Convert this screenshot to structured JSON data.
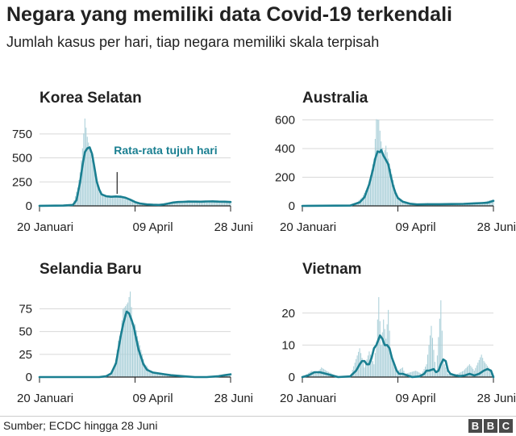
{
  "title": "Negara yang memiliki data Covid-19 terkendali",
  "subtitle": "Jumlah kasus per hari, tiap negara memiliki skala terpisah",
  "source": "Sumber; ECDC hingga 28 Juni",
  "logo": [
    "B",
    "B",
    "C"
  ],
  "colors": {
    "line": "#1a7f91",
    "bar": "#a9cfd8",
    "grid": "#d9d9d9",
    "axis": "#222222"
  },
  "chart_data": [
    {
      "type": "bar",
      "title": "Korea Selatan",
      "x_ticks": [
        "20 Januari",
        "09 April",
        "28 Juni"
      ],
      "x_tick_days": [
        0,
        80,
        160
      ],
      "y_ticks": [
        0,
        250,
        500,
        750
      ],
      "ylim": [
        0,
        900
      ],
      "annotation": {
        "text": "Rata-rata tujuh hari",
        "at_day": 65,
        "at_value": 100
      },
      "daily_points": [
        [
          0,
          1
        ],
        [
          10,
          3
        ],
        [
          20,
          3
        ],
        [
          28,
          15
        ],
        [
          30,
          100
        ],
        [
          32,
          190
        ],
        [
          34,
          350
        ],
        [
          36,
          600
        ],
        [
          38,
          910
        ],
        [
          40,
          720
        ],
        [
          42,
          600
        ],
        [
          44,
          480
        ],
        [
          46,
          370
        ],
        [
          48,
          250
        ],
        [
          50,
          150
        ],
        [
          52,
          115
        ],
        [
          54,
          100
        ],
        [
          56,
          95
        ],
        [
          60,
          90
        ],
        [
          64,
          100
        ],
        [
          68,
          110
        ],
        [
          72,
          90
        ],
        [
          76,
          60
        ],
        [
          80,
          40
        ],
        [
          84,
          30
        ],
        [
          88,
          20
        ],
        [
          95,
          15
        ],
        [
          100,
          10
        ],
        [
          108,
          20
        ],
        [
          112,
          45
        ],
        [
          116,
          40
        ],
        [
          120,
          50
        ],
        [
          125,
          60
        ],
        [
          130,
          40
        ],
        [
          135,
          50
        ],
        [
          140,
          45
        ],
        [
          145,
          60
        ],
        [
          150,
          40
        ],
        [
          155,
          55
        ],
        [
          160,
          45
        ]
      ],
      "avg_points": [
        [
          0,
          1
        ],
        [
          20,
          3
        ],
        [
          28,
          10
        ],
        [
          31,
          60
        ],
        [
          34,
          250
        ],
        [
          36,
          420
        ],
        [
          38,
          560
        ],
        [
          40,
          600
        ],
        [
          42,
          610
        ],
        [
          44,
          540
        ],
        [
          46,
          400
        ],
        [
          48,
          250
        ],
        [
          50,
          170
        ],
        [
          52,
          120
        ],
        [
          56,
          100
        ],
        [
          60,
          95
        ],
        [
          64,
          98
        ],
        [
          68,
          95
        ],
        [
          72,
          85
        ],
        [
          76,
          65
        ],
        [
          80,
          40
        ],
        [
          84,
          25
        ],
        [
          90,
          15
        ],
        [
          95,
          12
        ],
        [
          100,
          10
        ],
        [
          104,
          15
        ],
        [
          108,
          25
        ],
        [
          112,
          35
        ],
        [
          116,
          40
        ],
        [
          120,
          42
        ],
        [
          125,
          45
        ],
        [
          130,
          45
        ],
        [
          135,
          44
        ],
        [
          140,
          46
        ],
        [
          145,
          47
        ],
        [
          150,
          45
        ],
        [
          155,
          44
        ],
        [
          160,
          40
        ]
      ]
    },
    {
      "type": "bar",
      "title": "Australia",
      "x_ticks": [
        "20 Januari",
        "09 April",
        "28 Juni"
      ],
      "x_tick_days": [
        0,
        80,
        160
      ],
      "y_ticks": [
        0,
        200,
        400,
        600
      ],
      "ylim": [
        0,
        620
      ],
      "daily_points": [
        [
          0,
          0
        ],
        [
          30,
          1
        ],
        [
          40,
          5
        ],
        [
          45,
          20
        ],
        [
          50,
          60
        ],
        [
          55,
          140
        ],
        [
          58,
          250
        ],
        [
          60,
          330
        ],
        [
          62,
          605
        ],
        [
          64,
          600
        ],
        [
          66,
          450
        ],
        [
          68,
          360
        ],
        [
          70,
          420
        ],
        [
          72,
          330
        ],
        [
          74,
          260
        ],
        [
          76,
          180
        ],
        [
          78,
          110
        ],
        [
          80,
          70
        ],
        [
          82,
          45
        ],
        [
          84,
          30
        ],
        [
          88,
          20
        ],
        [
          92,
          15
        ],
        [
          96,
          10
        ],
        [
          100,
          15
        ],
        [
          105,
          20
        ],
        [
          110,
          10
        ],
        [
          115,
          15
        ],
        [
          120,
          10
        ],
        [
          125,
          15
        ],
        [
          130,
          12
        ],
        [
          135,
          15
        ],
        [
          140,
          20
        ],
        [
          145,
          25
        ],
        [
          150,
          20
        ],
        [
          155,
          35
        ],
        [
          160,
          45
        ]
      ],
      "avg_points": [
        [
          0,
          0
        ],
        [
          40,
          2
        ],
        [
          48,
          25
        ],
        [
          52,
          60
        ],
        [
          56,
          150
        ],
        [
          59,
          250
        ],
        [
          61,
          330
        ],
        [
          63,
          380
        ],
        [
          65,
          375
        ],
        [
          66,
          390
        ],
        [
          68,
          350
        ],
        [
          70,
          320
        ],
        [
          72,
          290
        ],
        [
          74,
          210
        ],
        [
          76,
          140
        ],
        [
          78,
          90
        ],
        [
          80,
          55
        ],
        [
          84,
          30
        ],
        [
          90,
          15
        ],
        [
          96,
          10
        ],
        [
          105,
          12
        ],
        [
          115,
          12
        ],
        [
          125,
          13
        ],
        [
          135,
          14
        ],
        [
          140,
          16
        ],
        [
          145,
          18
        ],
        [
          150,
          20
        ],
        [
          155,
          22
        ],
        [
          160,
          35
        ]
      ]
    },
    {
      "type": "bar",
      "title": "Selandia Baru",
      "x_ticks": [
        "20 Januari",
        "09 April",
        "28 Juni"
      ],
      "x_tick_days": [
        0,
        80,
        160
      ],
      "y_ticks": [
        0,
        25,
        50,
        75
      ],
      "ylim": [
        0,
        95
      ],
      "daily_points": [
        [
          0,
          0
        ],
        [
          55,
          0
        ],
        [
          58,
          3
        ],
        [
          60,
          6
        ],
        [
          62,
          10
        ],
        [
          64,
          20
        ],
        [
          66,
          40
        ],
        [
          68,
          50
        ],
        [
          70,
          75
        ],
        [
          72,
          78
        ],
        [
          74,
          82
        ],
        [
          76,
          94
        ],
        [
          78,
          60
        ],
        [
          80,
          58
        ],
        [
          82,
          45
        ],
        [
          84,
          35
        ],
        [
          86,
          25
        ],
        [
          88,
          15
        ],
        [
          90,
          12
        ],
        [
          92,
          8
        ],
        [
          95,
          5
        ],
        [
          100,
          3
        ],
        [
          105,
          2
        ],
        [
          110,
          1
        ],
        [
          120,
          1
        ],
        [
          130,
          0
        ],
        [
          140,
          0
        ],
        [
          150,
          1
        ],
        [
          155,
          2
        ],
        [
          160,
          4
        ]
      ],
      "avg_points": [
        [
          0,
          0
        ],
        [
          50,
          0
        ],
        [
          56,
          1
        ],
        [
          60,
          4
        ],
        [
          64,
          15
        ],
        [
          66,
          30
        ],
        [
          68,
          45
        ],
        [
          70,
          58
        ],
        [
          72,
          68
        ],
        [
          73,
          72
        ],
        [
          75,
          70
        ],
        [
          77,
          63
        ],
        [
          79,
          55
        ],
        [
          81,
          42
        ],
        [
          83,
          30
        ],
        [
          85,
          22
        ],
        [
          87,
          14
        ],
        [
          90,
          8
        ],
        [
          95,
          5
        ],
        [
          100,
          4
        ],
        [
          105,
          3
        ],
        [
          110,
          2
        ],
        [
          120,
          1
        ],
        [
          130,
          0
        ],
        [
          140,
          0
        ],
        [
          150,
          1
        ],
        [
          155,
          2
        ],
        [
          160,
          3
        ]
      ]
    },
    {
      "type": "bar",
      "title": "Vietnam",
      "x_ticks": [
        "20 Januari",
        "09 April",
        "28 Juni"
      ],
      "x_tick_days": [
        0,
        80,
        160
      ],
      "y_ticks": [
        0,
        10,
        20
      ],
      "ylim": [
        0,
        26
      ],
      "daily_points": [
        [
          0,
          0
        ],
        [
          4,
          1
        ],
        [
          8,
          2
        ],
        [
          12,
          1
        ],
        [
          16,
          3
        ],
        [
          20,
          2
        ],
        [
          25,
          1
        ],
        [
          30,
          0
        ],
        [
          40,
          0
        ],
        [
          48,
          9
        ],
        [
          52,
          3
        ],
        [
          56,
          8
        ],
        [
          60,
          4
        ],
        [
          62,
          11
        ],
        [
          64,
          25
        ],
        [
          66,
          10
        ],
        [
          68,
          18
        ],
        [
          70,
          12
        ],
        [
          72,
          21
        ],
        [
          74,
          8
        ],
        [
          76,
          5
        ],
        [
          78,
          3
        ],
        [
          80,
          2
        ],
        [
          84,
          3
        ],
        [
          86,
          1
        ],
        [
          95,
          2
        ],
        [
          100,
          1
        ],
        [
          104,
          4
        ],
        [
          108,
          16
        ],
        [
          112,
          1
        ],
        [
          116,
          24
        ],
        [
          118,
          5
        ],
        [
          122,
          1
        ],
        [
          130,
          1
        ],
        [
          135,
          2
        ],
        [
          140,
          4
        ],
        [
          144,
          2
        ],
        [
          150,
          7
        ],
        [
          152,
          5
        ],
        [
          156,
          3
        ],
        [
          160,
          0
        ]
      ],
      "avg_points": [
        [
          0,
          0
        ],
        [
          5,
          0.5
        ],
        [
          10,
          1.5
        ],
        [
          15,
          1.5
        ],
        [
          20,
          1
        ],
        [
          25,
          0.5
        ],
        [
          30,
          0
        ],
        [
          40,
          0.2
        ],
        [
          45,
          2
        ],
        [
          48,
          4
        ],
        [
          50,
          5
        ],
        [
          52,
          5
        ],
        [
          54,
          4
        ],
        [
          56,
          4
        ],
        [
          58,
          6
        ],
        [
          60,
          9
        ],
        [
          62,
          10
        ],
        [
          64,
          12
        ],
        [
          65,
          13
        ],
        [
          67,
          12
        ],
        [
          69,
          10
        ],
        [
          71,
          10
        ],
        [
          73,
          9
        ],
        [
          75,
          6
        ],
        [
          77,
          4
        ],
        [
          79,
          2
        ],
        [
          81,
          1
        ],
        [
          84,
          1
        ],
        [
          88,
          0.5
        ],
        [
          92,
          0
        ],
        [
          98,
          0.2
        ],
        [
          102,
          1
        ],
        [
          104,
          2
        ],
        [
          106,
          2
        ],
        [
          110,
          2.5
        ],
        [
          112,
          1.5
        ],
        [
          114,
          2
        ],
        [
          116,
          4
        ],
        [
          118,
          5.5
        ],
        [
          120,
          5
        ],
        [
          122,
          2
        ],
        [
          124,
          1
        ],
        [
          128,
          0.5
        ],
        [
          132,
          0.3
        ],
        [
          136,
          0.5
        ],
        [
          140,
          1
        ],
        [
          144,
          0.5
        ],
        [
          148,
          1
        ],
        [
          152,
          2
        ],
        [
          155,
          2.5
        ],
        [
          158,
          2
        ],
        [
          160,
          0
        ]
      ]
    }
  ]
}
